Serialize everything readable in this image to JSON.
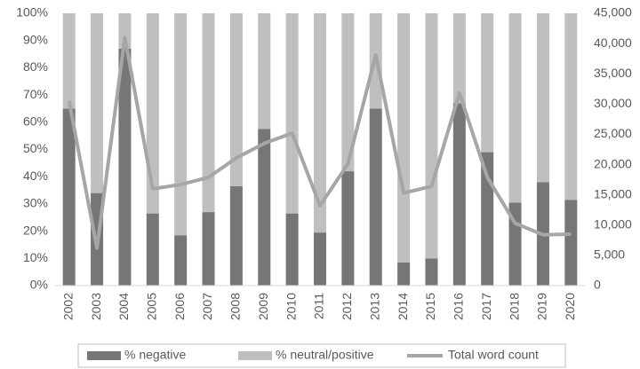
{
  "chart_data": {
    "type": "bar",
    "categories": [
      "2002",
      "2003",
      "2004",
      "2005",
      "2006",
      "2007",
      "2008",
      "2009",
      "2010",
      "2011",
      "2012",
      "2013",
      "2014",
      "2015",
      "2016",
      "2017",
      "2018",
      "2019",
      "2020"
    ],
    "stacked": true,
    "series": [
      {
        "name": "% negative",
        "color": "#767676",
        "type": "bar",
        "values": [
          65,
          34,
          87,
          26.5,
          18.5,
          27,
          36.5,
          57.5,
          26.5,
          19.5,
          42,
          65,
          8.5,
          10,
          67,
          49,
          30.5,
          38,
          31.5
        ]
      },
      {
        "name": "% neutral/positive",
        "color": "#bfbfbf",
        "type": "bar",
        "values": [
          35,
          66,
          13,
          73.5,
          81.5,
          73,
          63.5,
          42.5,
          73.5,
          80.5,
          58,
          35,
          91.5,
          90,
          33,
          51,
          69.5,
          62,
          68.5
        ]
      },
      {
        "name": "Total word count",
        "color": "#a6a6a6",
        "type": "line",
        "axis": "y2",
        "values": [
          30500,
          6200,
          41000,
          16000,
          16700,
          17900,
          21100,
          23500,
          25200,
          13200,
          20100,
          38100,
          15300,
          16400,
          31800,
          17900,
          10300,
          8400,
          8500
        ]
      }
    ],
    "ylim": [
      0,
      100
    ],
    "yticks": [
      {
        "value": 0,
        "label": "0%"
      },
      {
        "value": 10,
        "label": "10%"
      },
      {
        "value": 20,
        "label": "20%"
      },
      {
        "value": 30,
        "label": "30%"
      },
      {
        "value": 40,
        "label": "40%"
      },
      {
        "value": 50,
        "label": "50%"
      },
      {
        "value": 60,
        "label": "60%"
      },
      {
        "value": 70,
        "label": "70%"
      },
      {
        "value": 80,
        "label": "80%"
      },
      {
        "value": 90,
        "label": "90%"
      },
      {
        "value": 100,
        "label": "100%"
      }
    ],
    "y2lim": [
      0,
      45000
    ],
    "y2ticks": [
      0,
      {
        "value": 5000,
        "label": "5,000"
      },
      {
        "value": 10000,
        "label": "10,000"
      },
      {
        "value": 15000,
        "label": "15,000"
      },
      {
        "value": 20000,
        "label": "20,000"
      },
      {
        "value": 25000,
        "label": "25,000"
      },
      {
        "value": 30000,
        "label": "30,000"
      },
      {
        "value": 35000,
        "label": "35,000"
      },
      {
        "value": 40000,
        "label": "40,000"
      },
      {
        "value": 45000,
        "label": "45,000"
      }
    ],
    "legend": "bottom"
  }
}
